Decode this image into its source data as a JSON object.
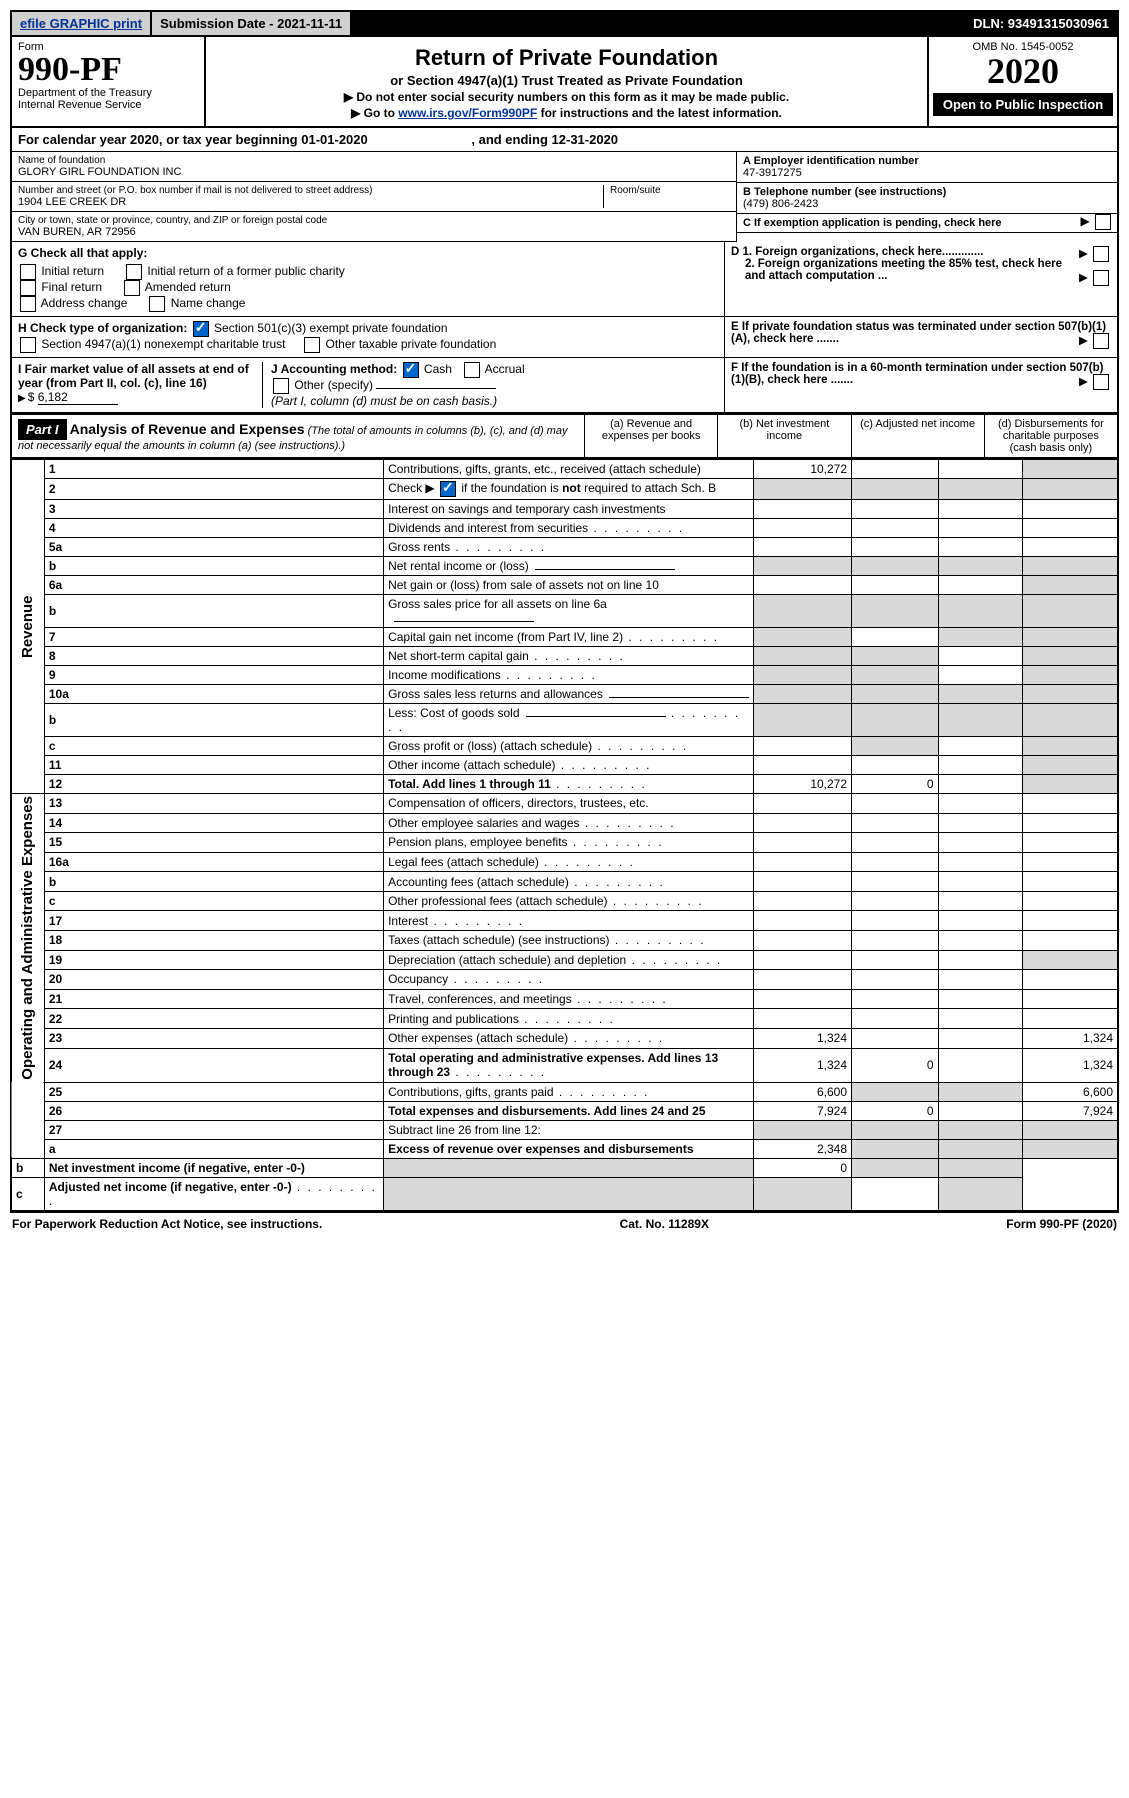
{
  "topbar": {
    "efile": "efile GRAPHIC print",
    "submission": "Submission Date - 2021-11-11",
    "dln": "DLN: 93491315030961"
  },
  "header": {
    "form_label": "Form",
    "form_number": "990-PF",
    "dept": "Department of the Treasury",
    "irs": "Internal Revenue Service",
    "title": "Return of Private Foundation",
    "subtitle": "or Section 4947(a)(1) Trust Treated as Private Foundation",
    "note1": "▶ Do not enter social security numbers on this form as it may be made public.",
    "note2_prefix": "▶ Go to ",
    "note2_link": "www.irs.gov/Form990PF",
    "note2_suffix": " for instructions and the latest information.",
    "omb": "OMB No. 1545-0052",
    "year": "2020",
    "open": "Open to Public Inspection"
  },
  "calendar": {
    "text_a": "For calendar year 2020, or tax year beginning ",
    "begin": "01-01-2020",
    "text_b": " , and ending ",
    "end": "12-31-2020"
  },
  "foundation": {
    "name_label": "Name of foundation",
    "name": "GLORY GIRL FOUNDATION INC",
    "addr_label": "Number and street (or P.O. box number if mail is not delivered to street address)",
    "room_label": "Room/suite",
    "addr": "1904 LEE CREEK DR",
    "city_label": "City or town, state or province, country, and ZIP or foreign postal code",
    "city": "VAN BUREN, AR  72956",
    "ein_label": "A Employer identification number",
    "ein": "47-3917275",
    "tel_label": "B Telephone number (see instructions)",
    "tel": "(479) 806-2423",
    "c_label": "C If exemption application is pending, check here",
    "d1": "D 1. Foreign organizations, check here.............",
    "d2": "2. Foreign organizations meeting the 85% test, check here and attach computation ...",
    "e": "E  If private foundation status was terminated under section 507(b)(1)(A), check here .......",
    "f": "F  If the foundation is in a 60-month termination under section 507(b)(1)(B), check here .......",
    "g_label": "G Check all that apply:",
    "g_opts": [
      "Initial return",
      "Final return",
      "Address change",
      "Initial return of a former public charity",
      "Amended return",
      "Name change"
    ],
    "h_label": "H Check type of organization:",
    "h1": "Section 501(c)(3) exempt private foundation",
    "h2": "Section 4947(a)(1) nonexempt charitable trust",
    "h3": "Other taxable private foundation",
    "i_label": "I Fair market value of all assets at end of year (from Part II, col. (c), line 16)",
    "i_val": "6,182",
    "j_label": "J Accounting method:",
    "j_cash": "Cash",
    "j_accrual": "Accrual",
    "j_other": "Other (specify)",
    "j_note": "(Part I, column (d) must be on cash basis.)"
  },
  "part1": {
    "tag": "Part I",
    "title": "Analysis of Revenue and Expenses",
    "title_note": " (The total of amounts in columns (b), (c), and (d) may not necessarily equal the amounts in column (a) (see instructions).)",
    "col_a": "(a) Revenue and expenses per books",
    "col_b": "(b) Net investment income",
    "col_c": "(c) Adjusted net income",
    "col_d": "(d) Disbursements for charitable purposes (cash basis only)"
  },
  "sections": {
    "revenue": "Revenue",
    "expenses": "Operating and Administrative Expenses"
  },
  "rows": [
    {
      "n": "1",
      "d": "Contributions, gifts, grants, etc., received (attach schedule)",
      "a": "10,272",
      "greyD": true
    },
    {
      "n": "2",
      "d": "Check ▶ ☑ if the foundation is not required to attach Sch. B",
      "dotted": true,
      "greyA": true,
      "greyB": true,
      "greyC": true,
      "greyD": true,
      "checked": true
    },
    {
      "n": "3",
      "d": "Interest on savings and temporary cash investments"
    },
    {
      "n": "4",
      "d": "Dividends and interest from securities",
      "dotted": true
    },
    {
      "n": "5a",
      "d": "Gross rents",
      "dotted": true
    },
    {
      "n": "b",
      "d": "Net rental income or (loss)",
      "underline": true,
      "greyA": true,
      "greyB": true,
      "greyC": true,
      "greyD": true
    },
    {
      "n": "6a",
      "d": "Net gain or (loss) from sale of assets not on line 10",
      "greyD": true
    },
    {
      "n": "b",
      "d": "Gross sales price for all assets on line 6a",
      "underline": true,
      "greyA": true,
      "greyB": true,
      "greyC": true,
      "greyD": true
    },
    {
      "n": "7",
      "d": "Capital gain net income (from Part IV, line 2)",
      "dotted": true,
      "greyA": true,
      "greyC": true,
      "greyD": true
    },
    {
      "n": "8",
      "d": "Net short-term capital gain",
      "dotted": true,
      "greyA": true,
      "greyB": true,
      "greyD": true
    },
    {
      "n": "9",
      "d": "Income modifications",
      "dotted": true,
      "greyA": true,
      "greyB": true,
      "greyD": true
    },
    {
      "n": "10a",
      "d": "Gross sales less returns and allowances",
      "underline": true,
      "greyA": true,
      "greyB": true,
      "greyC": true,
      "greyD": true
    },
    {
      "n": "b",
      "d": "Less: Cost of goods sold",
      "dotted": true,
      "underline": true,
      "greyA": true,
      "greyB": true,
      "greyC": true,
      "greyD": true
    },
    {
      "n": "c",
      "d": "Gross profit or (loss) (attach schedule)",
      "dotted": true,
      "greyB": true,
      "greyD": true
    },
    {
      "n": "11",
      "d": "Other income (attach schedule)",
      "dotted": true,
      "greyD": true
    },
    {
      "n": "12",
      "d": "Total. Add lines 1 through 11",
      "dotted": true,
      "bold": true,
      "a": "10,272",
      "b": "0",
      "greyD": true
    },
    {
      "n": "13",
      "d": "Compensation of officers, directors, trustees, etc."
    },
    {
      "n": "14",
      "d": "Other employee salaries and wages",
      "dotted": true
    },
    {
      "n": "15",
      "d": "Pension plans, employee benefits",
      "dotted": true
    },
    {
      "n": "16a",
      "d": "Legal fees (attach schedule)",
      "dotted": true
    },
    {
      "n": "b",
      "d": "Accounting fees (attach schedule)",
      "dotted": true
    },
    {
      "n": "c",
      "d": "Other professional fees (attach schedule)",
      "dotted": true
    },
    {
      "n": "17",
      "d": "Interest",
      "dotted": true
    },
    {
      "n": "18",
      "d": "Taxes (attach schedule) (see instructions)",
      "dotted": true
    },
    {
      "n": "19",
      "d": "Depreciation (attach schedule) and depletion",
      "dotted": true,
      "greyD": true
    },
    {
      "n": "20",
      "d": "Occupancy",
      "dotted": true
    },
    {
      "n": "21",
      "d": "Travel, conferences, and meetings",
      "dotted": true
    },
    {
      "n": "22",
      "d": "Printing and publications",
      "dotted": true
    },
    {
      "n": "23",
      "d": "Other expenses (attach schedule)",
      "dotted": true,
      "a": "1,324",
      "dv": "1,324"
    },
    {
      "n": "24",
      "d": "Total operating and administrative expenses. Add lines 13 through 23",
      "dotted": true,
      "bold": true,
      "a": "1,324",
      "b": "0",
      "dv": "1,324"
    },
    {
      "n": "25",
      "d": "Contributions, gifts, grants paid",
      "dotted": true,
      "a": "6,600",
      "greyB": true,
      "greyC": true,
      "dv": "6,600"
    },
    {
      "n": "26",
      "d": "Total expenses and disbursements. Add lines 24 and 25",
      "bold": true,
      "a": "7,924",
      "b": "0",
      "dv": "7,924"
    },
    {
      "n": "27",
      "d": "Subtract line 26 from line 12:",
      "greyA": true,
      "greyB": true,
      "greyC": true,
      "greyD": true
    },
    {
      "n": "a",
      "d": "Excess of revenue over expenses and disbursements",
      "bold": true,
      "a": "2,348",
      "greyB": true,
      "greyC": true,
      "greyD": true
    },
    {
      "n": "b",
      "d": "Net investment income (if negative, enter -0-)",
      "bold": true,
      "greyA": true,
      "b": "0",
      "greyC": true,
      "greyD": true
    },
    {
      "n": "c",
      "d": "Adjusted net income (if negative, enter -0-)",
      "bold": true,
      "dotted": true,
      "greyA": true,
      "greyB": true,
      "greyD": true
    }
  ],
  "footer": {
    "left": "For Paperwork Reduction Act Notice, see instructions.",
    "mid": "Cat. No. 11289X",
    "right": "Form 990-PF (2020)"
  },
  "colors": {
    "grey": "#d8d8d8",
    "link": "#003399",
    "black": "#000",
    "checked": "#0066cc"
  }
}
